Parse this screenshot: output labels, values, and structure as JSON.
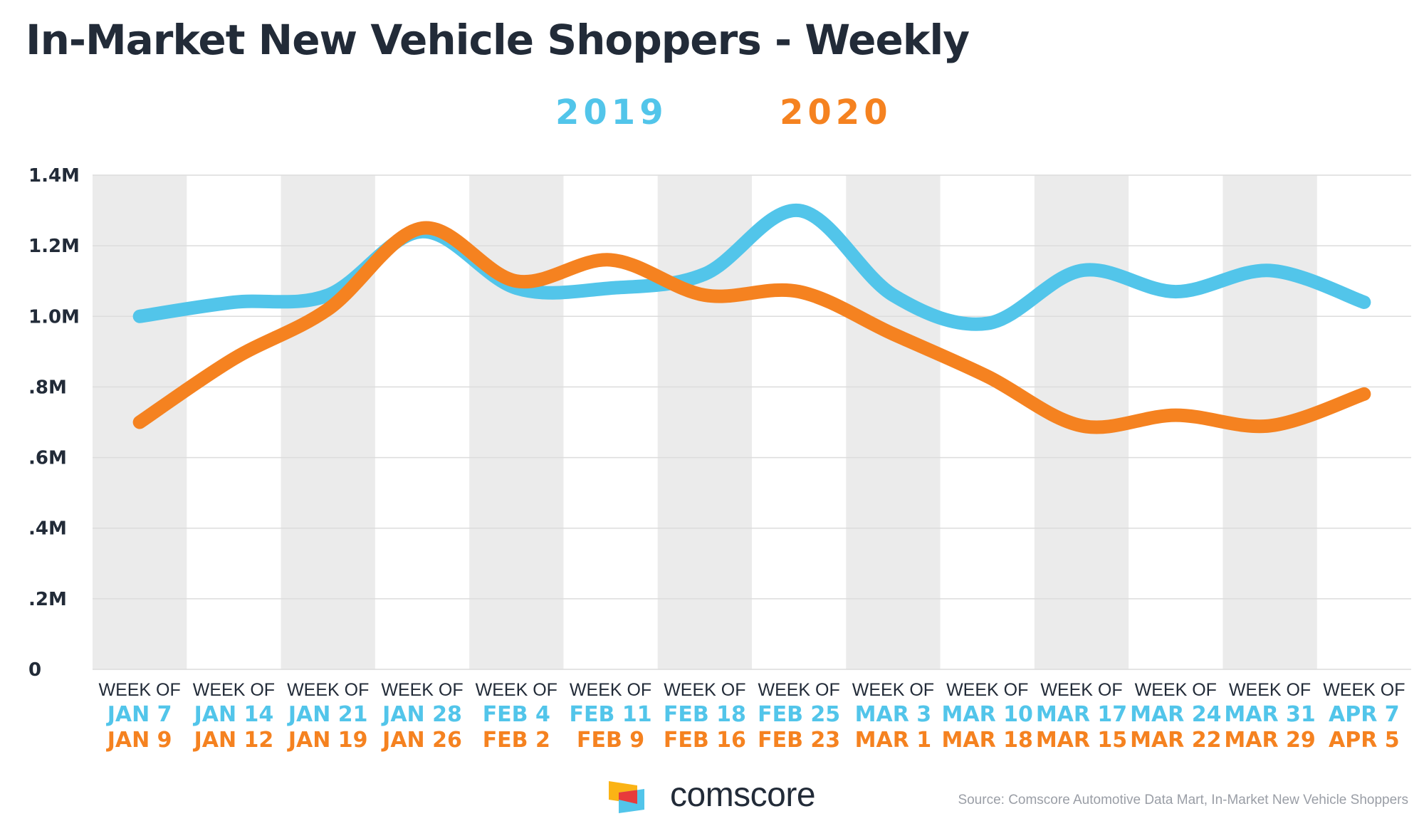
{
  "chart_data": {
    "type": "line",
    "title": "In-Market New Vehicle Shoppers - Weekly",
    "xlabel": "",
    "ylabel": "",
    "ylim": [
      0,
      1400000
    ],
    "yticks": [
      {
        "value": 0,
        "label": "0"
      },
      {
        "value": 200000,
        "label": ".2M"
      },
      {
        "value": 400000,
        "label": ".4M"
      },
      {
        "value": 600000,
        "label": ".6M"
      },
      {
        "value": 800000,
        "label": ".8M"
      },
      {
        "value": 1000000,
        "label": "1.0M"
      },
      {
        "value": 1200000,
        "label": "1.2M"
      },
      {
        "value": 1400000,
        "label": "1.4M"
      }
    ],
    "week_prefix": "WEEK OF",
    "categories_2019": [
      "JAN 7",
      "JAN 14",
      "JAN 21",
      "JAN 28",
      "FEB 4",
      "FEB 11",
      "FEB 18",
      "FEB 25",
      "MAR 3",
      "MAR 10",
      "MAR 17",
      "MAR 24",
      "MAR 31",
      "APR 7"
    ],
    "categories_2020": [
      "JAN 9",
      "JAN 12",
      "JAN 19",
      "JAN 26",
      "FEB 2",
      "FEB 9",
      "FEB 16",
      "FEB 23",
      "MAR 1",
      "MAR 18",
      "MAR 15",
      "MAR 22",
      "MAR 29",
      "APR 5"
    ],
    "series": [
      {
        "name": "2019",
        "color": "#52c5ea",
        "values": [
          1000000,
          1040000,
          1060000,
          1240000,
          1080000,
          1080000,
          1120000,
          1300000,
          1060000,
          980000,
          1130000,
          1070000,
          1130000,
          1040000
        ]
      },
      {
        "name": "2020",
        "color": "#f58220",
        "values": [
          700000,
          880000,
          1020000,
          1250000,
          1100000,
          1160000,
          1060000,
          1070000,
          950000,
          830000,
          690000,
          720000,
          690000,
          780000
        ]
      }
    ],
    "grid": true,
    "band_color": "#ebebeb",
    "legend": "top-center"
  },
  "footer": {
    "logo_text": "comscore",
    "source": "Source: Comscore Automotive Data Mart, In-Market New Vehicle Shoppers"
  }
}
